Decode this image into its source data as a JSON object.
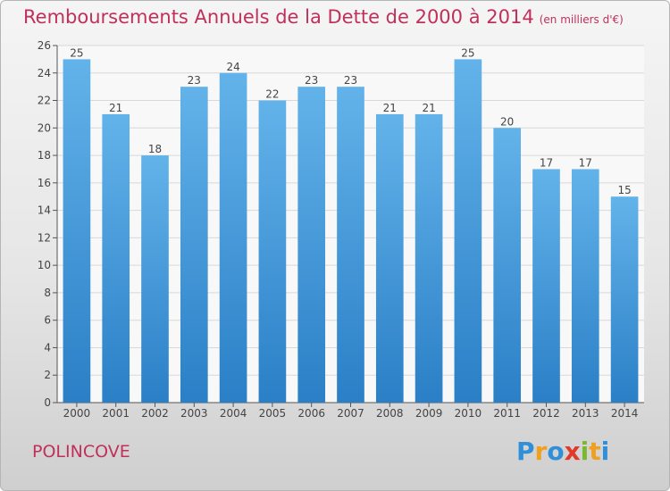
{
  "title": "Remboursements Annuels de la Dette de 2000 à 2014",
  "unit": "(en milliers d'€)",
  "commune": "POLINCOVE",
  "logo": {
    "letters": [
      "P",
      "r",
      "o",
      "x",
      "i",
      "t",
      "i"
    ],
    "colors": [
      "#2f8fd8",
      "#f0a020",
      "#2f8fd8",
      "#e03a2a",
      "#7ab830",
      "#f0a020",
      "#2f8fd8"
    ]
  },
  "colors": {
    "bar_top": "#63b3ea",
    "bar_bottom": "#2a7fc6",
    "title": "#c0305a"
  },
  "chart_data": {
    "type": "bar",
    "title": "Remboursements Annuels de la Dette de 2000 à 2014",
    "categories": [
      "2000",
      "2001",
      "2002",
      "2003",
      "2004",
      "2005",
      "2006",
      "2007",
      "2008",
      "2009",
      "2010",
      "2011",
      "2012",
      "2013",
      "2014"
    ],
    "values": [
      25,
      21,
      18,
      23,
      24,
      22,
      23,
      23,
      21,
      21,
      25,
      20,
      17,
      17,
      15
    ],
    "ylim": [
      0,
      26
    ],
    "yticks": [
      0,
      2,
      4,
      6,
      8,
      10,
      12,
      14,
      16,
      18,
      20,
      22,
      24,
      26
    ],
    "grid": true
  }
}
